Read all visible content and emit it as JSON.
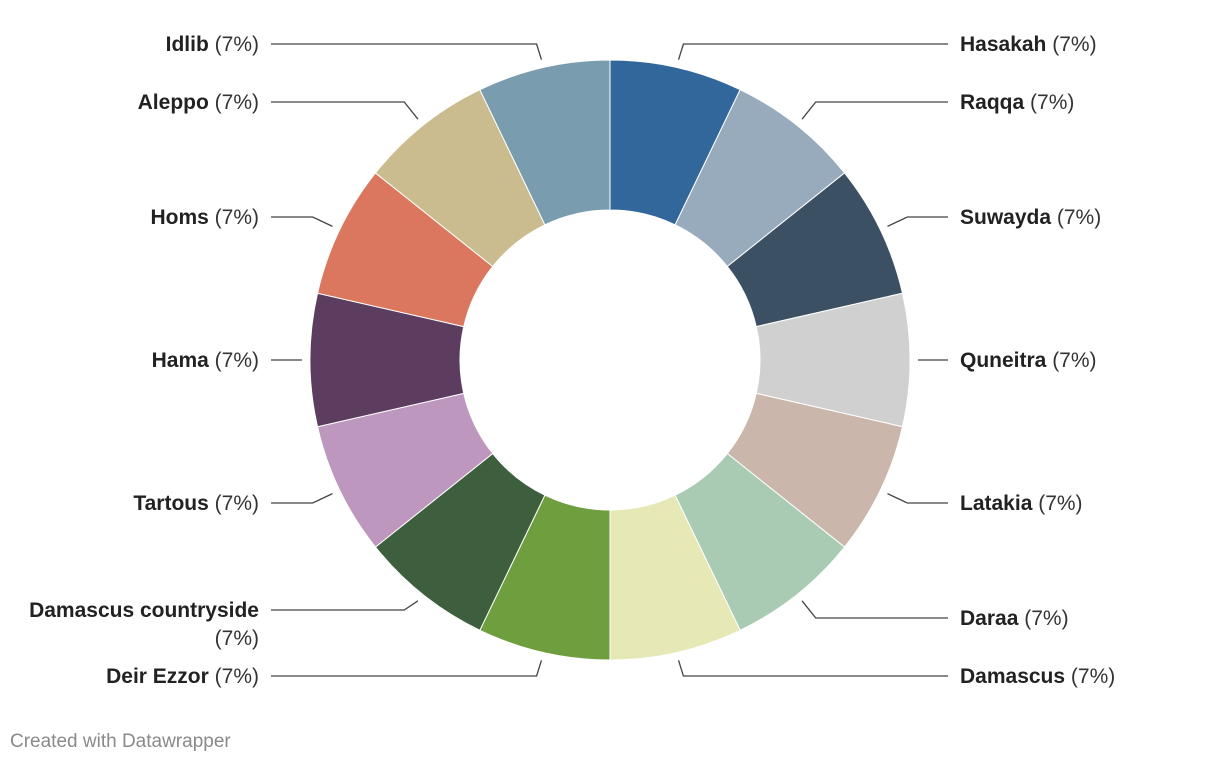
{
  "chart_data": {
    "type": "pie",
    "variant": "donut",
    "categories": [
      "Hasakah",
      "Raqqa",
      "Suwayda",
      "Quneitra",
      "Latakia",
      "Daraa",
      "Damascus",
      "Deir Ezzor",
      "Damascus countryside",
      "Tartous",
      "Hama",
      "Homs",
      "Aleppo",
      "Idlib"
    ],
    "values": [
      7,
      7,
      7,
      7,
      7,
      7,
      7,
      7,
      7,
      7,
      7,
      7,
      7,
      7
    ],
    "value_labels": [
      "(7%)",
      "(7%)",
      "(7%)",
      "(7%)",
      "(7%)",
      "(7%)",
      "(7%)",
      "(7%)",
      "(7%)",
      "(7%)",
      "(7%)",
      "(7%)",
      "(7%)",
      "(7%)"
    ],
    "colors": [
      "#31679b",
      "#98abbd",
      "#3c5063",
      "#d0d0d0",
      "#cbb6ab",
      "#aacbb3",
      "#e6e8b5",
      "#6f9e3e",
      "#3e5f3e",
      "#bd97bd",
      "#5c3c5f",
      "#db775f",
      "#cbbc8f",
      "#7a9caf"
    ],
    "unit": "%",
    "start_angle_deg": 0,
    "direction": "clockwise",
    "legend": "none",
    "title": "",
    "subtitle": ""
  },
  "footer": {
    "credit": "Created with Datawrapper"
  }
}
